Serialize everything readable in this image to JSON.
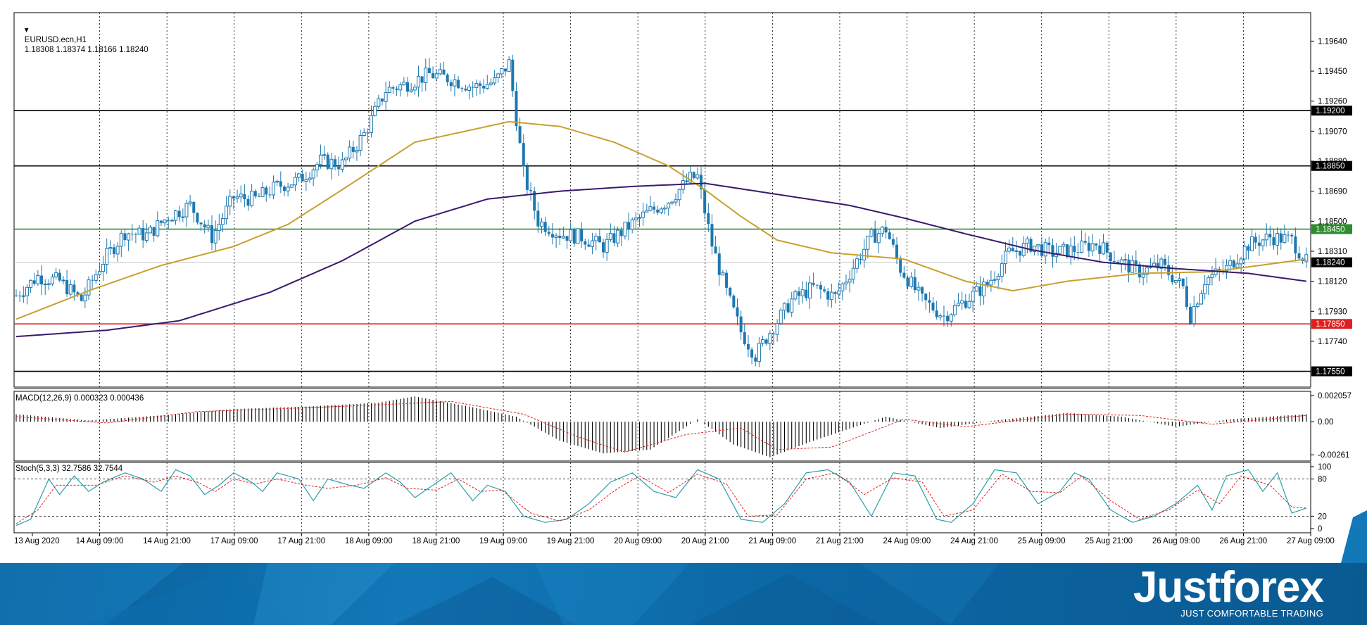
{
  "header": {
    "symbol": "EURUSD.ecn,H1",
    "ohlc": "1.18308 1.18374 1.18166 1.18240",
    "macd_label": "MACD(12,26,9) 0.000323 0.000436",
    "stoch_label": "Stoch(5,3,3) 32.7586 32.7544"
  },
  "chart_data": {
    "type": "candlestick",
    "symbol": "EURUSD.ecn",
    "timeframe": "H1",
    "price_axis": {
      "range": [
        1.1745,
        1.1982
      ],
      "ticks": [
        "1.19640",
        "1.19450",
        "1.19260",
        "1.19070",
        "1.18880",
        "1.18690",
        "1.18500",
        "1.18310",
        "1.18120",
        "1.17930",
        "1.17740"
      ]
    },
    "time_axis": [
      "13 Aug 2020",
      "14 Aug 09:00",
      "14 Aug 21:00",
      "17 Aug 09:00",
      "17 Aug 21:00",
      "18 Aug 09:00",
      "18 Aug 21:00",
      "19 Aug 09:00",
      "19 Aug 21:00",
      "20 Aug 09:00",
      "20 Aug 21:00",
      "21 Aug 09:00",
      "21 Aug 21:00",
      "24 Aug 09:00",
      "24 Aug 21:00",
      "25 Aug 09:00",
      "25 Aug 21:00",
      "26 Aug 09:00",
      "26 Aug 21:00",
      "27 Aug 09:00"
    ],
    "horizontal_levels": [
      {
        "price": 1.192,
        "label": "1.19200",
        "color": "#000000"
      },
      {
        "price": 1.1885,
        "label": "1.18850",
        "color": "#000000"
      },
      {
        "price": 1.1845,
        "label": "1.18450",
        "color": "#2e8b2e"
      },
      {
        "price": 1.1785,
        "label": "1.17850",
        "color": "#e02020"
      },
      {
        "price": 1.1755,
        "label": "1.17550",
        "color": "#000000"
      }
    ],
    "current_price": {
      "price": 1.1824,
      "label": "1.18240"
    },
    "price_keypoints": [
      [
        0,
        1.1803
      ],
      [
        6,
        1.1815
      ],
      [
        12,
        1.1812
      ],
      [
        18,
        1.18
      ],
      [
        24,
        1.1825
      ],
      [
        30,
        1.1843
      ],
      [
        36,
        1.1841
      ],
      [
        42,
        1.1853
      ],
      [
        48,
        1.186
      ],
      [
        54,
        1.184
      ],
      [
        60,
        1.1865
      ],
      [
        66,
        1.1864
      ],
      [
        72,
        1.1872
      ],
      [
        78,
        1.1876
      ],
      [
        84,
        1.1888
      ],
      [
        90,
        1.1886
      ],
      [
        96,
        1.1905
      ],
      [
        102,
        1.1933
      ],
      [
        108,
        1.1937
      ],
      [
        114,
        1.1943
      ],
      [
        120,
        1.194
      ],
      [
        126,
        1.1935
      ],
      [
        132,
        1.1938
      ],
      [
        136,
        1.195
      ],
      [
        140,
        1.188
      ],
      [
        144,
        1.185
      ],
      [
        150,
        1.1842
      ],
      [
        156,
        1.184
      ],
      [
        162,
        1.1834
      ],
      [
        168,
        1.1845
      ],
      [
        174,
        1.1855
      ],
      [
        180,
        1.1863
      ],
      [
        186,
        1.1877
      ],
      [
        188,
        1.1878
      ],
      [
        192,
        1.1835
      ],
      [
        196,
        1.1805
      ],
      [
        200,
        1.178
      ],
      [
        204,
        1.1765
      ],
      [
        208,
        1.178
      ],
      [
        214,
        1.18
      ],
      [
        220,
        1.1808
      ],
      [
        226,
        1.1802
      ],
      [
        232,
        1.1825
      ],
      [
        236,
        1.184
      ],
      [
        240,
        1.1845
      ],
      [
        244,
        1.182
      ],
      [
        250,
        1.18
      ],
      [
        256,
        1.179
      ],
      [
        262,
        1.18
      ],
      [
        268,
        1.181
      ],
      [
        274,
        1.183
      ],
      [
        280,
        1.1835
      ],
      [
        286,
        1.183
      ],
      [
        292,
        1.1832
      ],
      [
        298,
        1.1836
      ],
      [
        304,
        1.1825
      ],
      [
        310,
        1.1818
      ],
      [
        316,
        1.1822
      ],
      [
        322,
        1.1808
      ],
      [
        324,
        1.179
      ],
      [
        328,
        1.1813
      ],
      [
        334,
        1.182
      ],
      [
        340,
        1.1835
      ],
      [
        346,
        1.184
      ],
      [
        352,
        1.1838
      ],
      [
        356,
        1.1824
      ]
    ],
    "moving_averages": [
      {
        "color": "#c8a030",
        "keypoints": [
          [
            0,
            1.1788
          ],
          [
            20,
            1.1806
          ],
          [
            40,
            1.1822
          ],
          [
            60,
            1.1834
          ],
          [
            75,
            1.1848
          ],
          [
            90,
            1.187
          ],
          [
            110,
            1.19
          ],
          [
            136,
            1.1913
          ],
          [
            150,
            1.191
          ],
          [
            165,
            1.19
          ],
          [
            180,
            1.1885
          ],
          [
            190,
            1.187
          ],
          [
            200,
            1.1853
          ],
          [
            210,
            1.1838
          ],
          [
            225,
            1.183
          ],
          [
            245,
            1.1826
          ],
          [
            262,
            1.1812
          ],
          [
            275,
            1.1806
          ],
          [
            290,
            1.1812
          ],
          [
            310,
            1.1817
          ],
          [
            330,
            1.1818
          ],
          [
            356,
            1.1826
          ]
        ]
      },
      {
        "color": "#3a1a6e",
        "keypoints": [
          [
            0,
            1.1777
          ],
          [
            25,
            1.1781
          ],
          [
            45,
            1.1787
          ],
          [
            70,
            1.1805
          ],
          [
            90,
            1.1825
          ],
          [
            110,
            1.185
          ],
          [
            130,
            1.1864
          ],
          [
            150,
            1.1869
          ],
          [
            170,
            1.1872
          ],
          [
            190,
            1.1874
          ],
          [
            210,
            1.1867
          ],
          [
            230,
            1.186
          ],
          [
            245,
            1.1852
          ],
          [
            262,
            1.1842
          ],
          [
            280,
            1.1832
          ],
          [
            300,
            1.1824
          ],
          [
            320,
            1.182
          ],
          [
            340,
            1.1817
          ],
          [
            356,
            1.1812
          ]
        ]
      }
    ],
    "macd": {
      "params": "12,26,9",
      "range": [
        -0.0031,
        0.0024
      ],
      "ticks": [
        "0.002057",
        "0.00",
        "-0.00261"
      ],
      "histogram_keypoints": [
        [
          0,
          0.0006
        ],
        [
          20,
          0.0001
        ],
        [
          40,
          0.0005
        ],
        [
          60,
          0.001
        ],
        [
          80,
          0.0012
        ],
        [
          100,
          0.0015
        ],
        [
          110,
          0.002
        ],
        [
          125,
          0.0012
        ],
        [
          138,
          0.0004
        ],
        [
          150,
          -0.0015
        ],
        [
          162,
          -0.0025
        ],
        [
          175,
          -0.0022
        ],
        [
          188,
          0.0002
        ],
        [
          198,
          -0.0018
        ],
        [
          208,
          -0.0028
        ],
        [
          220,
          -0.0015
        ],
        [
          240,
          0.0004
        ],
        [
          255,
          -0.0005
        ],
        [
          270,
          0.0001
        ],
        [
          290,
          0.0007
        ],
        [
          305,
          0.0004
        ],
        [
          320,
          -0.0004
        ],
        [
          335,
          0.0002
        ],
        [
          356,
          0.0006
        ]
      ],
      "signal_keypoints": [
        [
          0,
          0.0004
        ],
        [
          25,
          -0.0001
        ],
        [
          50,
          0.0008
        ],
        [
          80,
          0.0011
        ],
        [
          105,
          0.0014
        ],
        [
          120,
          0.0016
        ],
        [
          140,
          0.0006
        ],
        [
          155,
          -0.0012
        ],
        [
          168,
          -0.0024
        ],
        [
          185,
          -0.001
        ],
        [
          200,
          -0.0005
        ],
        [
          210,
          -0.0022
        ],
        [
          225,
          -0.002
        ],
        [
          245,
          0.0002
        ],
        [
          262,
          -0.0004
        ],
        [
          290,
          0.0006
        ],
        [
          310,
          0.0005
        ],
        [
          330,
          -0.0002
        ],
        [
          356,
          0.0005
        ]
      ]
    },
    "stochastic": {
      "params": "5,3,3",
      "range": [
        0,
        100
      ],
      "ticks": [
        "100",
        "80",
        "20",
        "0"
      ],
      "k_keypoints": [
        [
          0,
          5
        ],
        [
          4,
          15
        ],
        [
          9,
          80
        ],
        [
          12,
          55
        ],
        [
          16,
          85
        ],
        [
          20,
          60
        ],
        [
          24,
          75
        ],
        [
          30,
          90
        ],
        [
          35,
          80
        ],
        [
          40,
          60
        ],
        [
          44,
          95
        ],
        [
          48,
          85
        ],
        [
          52,
          55
        ],
        [
          56,
          70
        ],
        [
          60,
          90
        ],
        [
          65,
          75
        ],
        [
          68,
          60
        ],
        [
          72,
          90
        ],
        [
          78,
          80
        ],
        [
          82,
          45
        ],
        [
          86,
          80
        ],
        [
          92,
          70
        ],
        [
          96,
          65
        ],
        [
          102,
          90
        ],
        [
          106,
          75
        ],
        [
          110,
          50
        ],
        [
          115,
          70
        ],
        [
          120,
          90
        ],
        [
          126,
          45
        ],
        [
          130,
          70
        ],
        [
          135,
          60
        ],
        [
          140,
          20
        ],
        [
          146,
          10
        ],
        [
          152,
          15
        ],
        [
          158,
          40
        ],
        [
          164,
          75
        ],
        [
          170,
          90
        ],
        [
          176,
          60
        ],
        [
          182,
          50
        ],
        [
          188,
          95
        ],
        [
          194,
          80
        ],
        [
          200,
          15
        ],
        [
          206,
          10
        ],
        [
          212,
          40
        ],
        [
          218,
          90
        ],
        [
          224,
          95
        ],
        [
          230,
          75
        ],
        [
          236,
          20
        ],
        [
          242,
          90
        ],
        [
          248,
          85
        ],
        [
          254,
          15
        ],
        [
          258,
          10
        ],
        [
          264,
          40
        ],
        [
          270,
          95
        ],
        [
          276,
          90
        ],
        [
          282,
          40
        ],
        [
          288,
          60
        ],
        [
          292,
          90
        ],
        [
          296,
          80
        ],
        [
          302,
          30
        ],
        [
          308,
          10
        ],
        [
          314,
          20
        ],
        [
          320,
          40
        ],
        [
          326,
          70
        ],
        [
          330,
          30
        ],
        [
          334,
          85
        ],
        [
          340,
          95
        ],
        [
          344,
          60
        ],
        [
          348,
          90
        ],
        [
          352,
          25
        ],
        [
          356,
          33
        ]
      ],
      "d_keypoints": [
        [
          0,
          8
        ],
        [
          6,
          30
        ],
        [
          11,
          70
        ],
        [
          16,
          70
        ],
        [
          22,
          70
        ],
        [
          30,
          85
        ],
        [
          38,
          75
        ],
        [
          44,
          85
        ],
        [
          50,
          75
        ],
        [
          55,
          60
        ],
        [
          60,
          80
        ],
        [
          66,
          72
        ],
        [
          72,
          80
        ],
        [
          80,
          70
        ],
        [
          86,
          65
        ],
        [
          94,
          70
        ],
        [
          102,
          82
        ],
        [
          108,
          65
        ],
        [
          116,
          62
        ],
        [
          122,
          80
        ],
        [
          128,
          60
        ],
        [
          134,
          62
        ],
        [
          142,
          25
        ],
        [
          150,
          12
        ],
        [
          158,
          30
        ],
        [
          166,
          65
        ],
        [
          172,
          85
        ],
        [
          180,
          58
        ],
        [
          188,
          88
        ],
        [
          196,
          72
        ],
        [
          202,
          20
        ],
        [
          210,
          22
        ],
        [
          218,
          80
        ],
        [
          226,
          90
        ],
        [
          234,
          55
        ],
        [
          242,
          82
        ],
        [
          250,
          75
        ],
        [
          256,
          20
        ],
        [
          264,
          30
        ],
        [
          272,
          88
        ],
        [
          280,
          60
        ],
        [
          288,
          58
        ],
        [
          294,
          85
        ],
        [
          302,
          45
        ],
        [
          310,
          15
        ],
        [
          318,
          30
        ],
        [
          326,
          62
        ],
        [
          332,
          40
        ],
        [
          338,
          85
        ],
        [
          346,
          70
        ],
        [
          352,
          35
        ],
        [
          356,
          33
        ]
      ]
    }
  },
  "banner": {
    "brand_name": "Justforex",
    "tagline": "JUST COMFORTABLE TRADING",
    "gradient_colors": [
      "#0a5d96",
      "#1278b8"
    ]
  }
}
